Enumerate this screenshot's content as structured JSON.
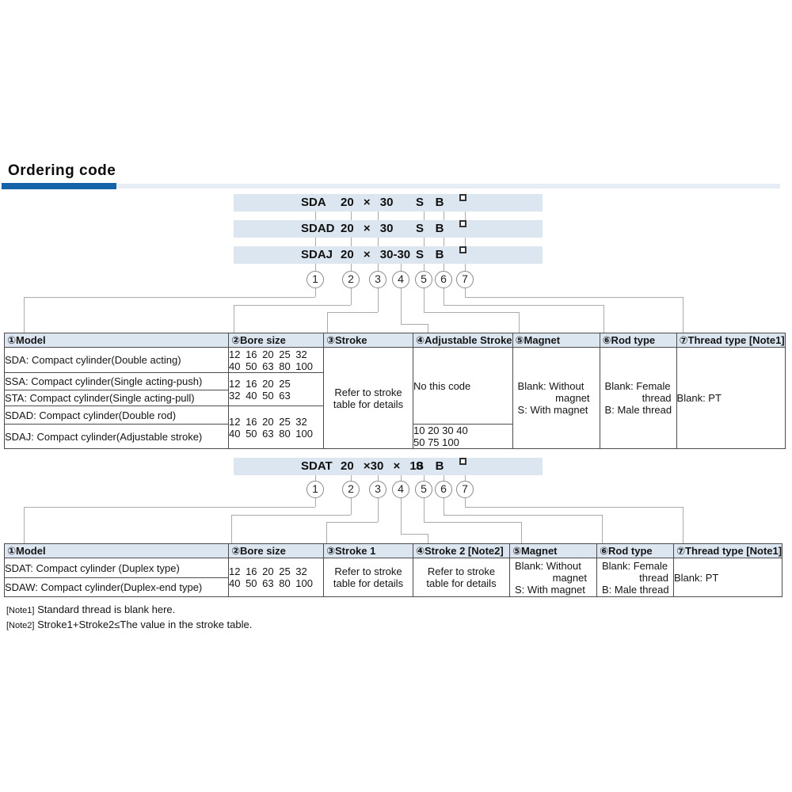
{
  "title": "Ordering code",
  "section1": {
    "bars": [
      {
        "model": "SDA",
        "size": "20 × 30",
        "magnet": "S",
        "rod": "B"
      },
      {
        "model": "SDAD",
        "size": "20 × 30",
        "magnet": "S",
        "rod": "B"
      },
      {
        "model": "SDAJ",
        "size": "20 × 30-30",
        "magnet": "S",
        "rod": "B"
      }
    ],
    "circles": [
      "1",
      "2",
      "3",
      "4",
      "5",
      "6",
      "7"
    ],
    "table": {
      "headers": [
        "①Model",
        "②Bore size",
        "③Stroke",
        "④Adjustable Stroke",
        "⑤Magnet",
        "⑥Rod type",
        "⑦Thread type [Note1]"
      ],
      "models": [
        "SDA: Compact cylinder(Double acting)",
        "SSA: Compact cylinder(Single acting-push)",
        "STA: Compact cylinder(Single acting-pull)",
        "SDAD: Compact cylinder(Double rod)",
        "SDAJ: Compact cylinder(Adjustable stroke)"
      ],
      "bore_sda": {
        "l1": "12 16 20 25 32",
        "l2": "40 50 63 80 100"
      },
      "bore_ssa_sta": {
        "l1": "12 16 20 25",
        "l2": "32 40 50 63"
      },
      "bore_sdad_sdaj": {
        "l1": "12 16 20 25 32",
        "l2": "40 50 63 80 100"
      },
      "stroke": {
        "l1": "Refer to stroke",
        "l2": "table for details"
      },
      "adjustable": {
        "none": "No this code",
        "values_l1": "10 20 30 40",
        "values_l2": "50 75 100"
      },
      "magnet": {
        "l1": "Blank: Without",
        "l2": "magnet",
        "l3": "S: With magnet"
      },
      "rod": {
        "l1": "Blank: Female",
        "l2": "thread",
        "l3": "B: Male thread"
      },
      "thread": "Blank: PT"
    }
  },
  "section2": {
    "bar": {
      "model": "SDAT",
      "size": "20 ×30 × 10",
      "magnet": "S",
      "rod": "B"
    },
    "circles": [
      "1",
      "2",
      "3",
      "4",
      "5",
      "6",
      "7"
    ],
    "table": {
      "headers": [
        "①Model",
        "②Bore size",
        "③Stroke 1",
        "④Stroke 2 [Note2]",
        "⑤Magnet",
        "⑥Rod type",
        "⑦Thread type [Note1]"
      ],
      "models": [
        "SDAT: Compact cylinder (Duplex type)",
        "SDAW: Compact cylinder(Duplex-end type)"
      ],
      "bore": {
        "l1": "12 16 20 25 32",
        "l2": "40 50 63 80 100"
      },
      "stroke1": {
        "l1": "Refer to stroke",
        "l2": "table for details"
      },
      "stroke2": {
        "l1": "Refer to stroke",
        "l2": "table for details"
      },
      "magnet": {
        "l1": "Blank: Without",
        "l2": "magnet",
        "l3": "S: With magnet"
      },
      "rod": {
        "l1": "Blank: Female",
        "l2": "thread",
        "l3": "B: Male thread"
      },
      "thread": "Blank: PT"
    }
  },
  "notes": [
    {
      "label": "[Note1]",
      "text": "Standard thread is blank here."
    },
    {
      "label": "[Note2]",
      "text": "Stroke1+Stroke2≤The value in the stroke table."
    }
  ],
  "colors": {
    "accent_dark": "#1563a8",
    "accent_light": "#e7edf4",
    "bar_bg": "#dce6f1",
    "header_bg": "#dce6f1"
  }
}
